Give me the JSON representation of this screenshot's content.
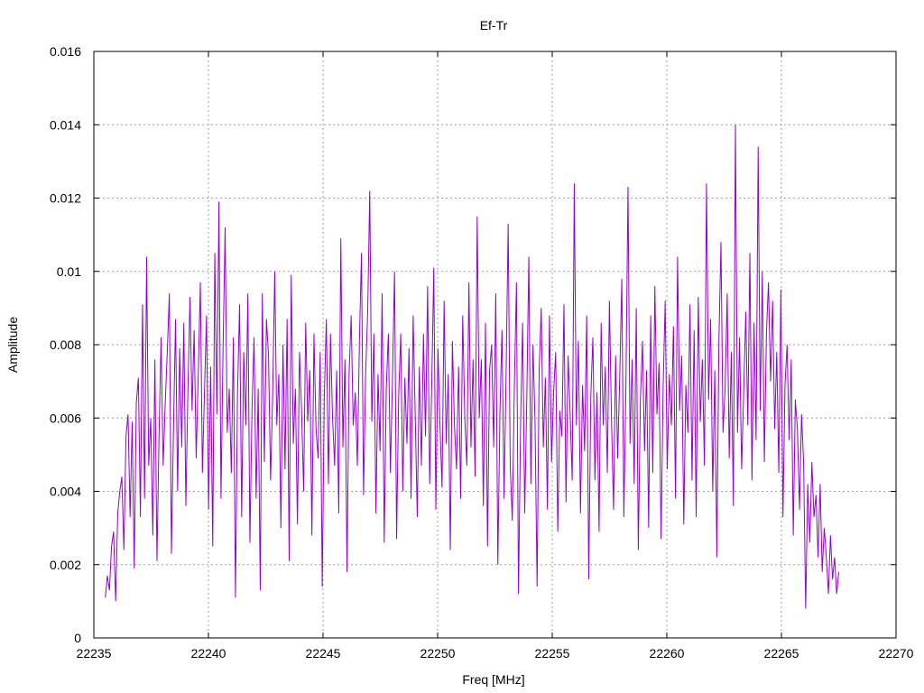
{
  "chart_data": {
    "type": "line",
    "title": "Ef-Tr",
    "xlabel": "Freq [MHz]",
    "ylabel": "Amplitude",
    "xlim": [
      22235,
      22270
    ],
    "ylim": [
      0,
      0.016
    ],
    "xticks": [
      "22235",
      "22240",
      "22245",
      "22250",
      "22255",
      "22260",
      "22265",
      "22270"
    ],
    "yticks": [
      "0",
      "0.002",
      "0.004",
      "0.006",
      "0.008",
      "0.01",
      "0.012",
      "0.014",
      "0.016"
    ],
    "grid": true,
    "series_color": "#9400d3",
    "series": [
      {
        "x_start": 22235.5,
        "x_end": 22267.5,
        "values": [
          0.0011,
          0.0017,
          0.0013,
          0.0025,
          0.0029,
          0.001,
          0.0034,
          0.004,
          0.0044,
          0.0024,
          0.0055,
          0.0061,
          0.0033,
          0.0059,
          0.0019,
          0.0064,
          0.0071,
          0.0033,
          0.0091,
          0.0038,
          0.0104,
          0.0047,
          0.006,
          0.0028,
          0.0076,
          0.0021,
          0.0055,
          0.0082,
          0.0047,
          0.0064,
          0.0078,
          0.0094,
          0.0023,
          0.0057,
          0.0087,
          0.004,
          0.0079,
          0.0052,
          0.0086,
          0.0036,
          0.0068,
          0.0093,
          0.0062,
          0.0084,
          0.0049,
          0.0072,
          0.0097,
          0.0045,
          0.0067,
          0.0088,
          0.0035,
          0.0074,
          0.0025,
          0.0105,
          0.0061,
          0.0119,
          0.0038,
          0.0079,
          0.0112,
          0.0056,
          0.0068,
          0.0045,
          0.0082,
          0.0011,
          0.0067,
          0.0091,
          0.0033,
          0.0078,
          0.0058,
          0.0094,
          0.0026,
          0.0062,
          0.0082,
          0.0038,
          0.0068,
          0.0013,
          0.0094,
          0.0048,
          0.0087,
          0.0077,
          0.0043,
          0.0066,
          0.01,
          0.0058,
          0.0072,
          0.003,
          0.008,
          0.0046,
          0.0087,
          0.0021,
          0.0099,
          0.0053,
          0.0068,
          0.0031,
          0.0078,
          0.0062,
          0.004,
          0.0086,
          0.0059,
          0.0073,
          0.0028,
          0.0083,
          0.0057,
          0.0049,
          0.0078,
          0.0014,
          0.0066,
          0.0087,
          0.0042,
          0.0083,
          0.006,
          0.0047,
          0.0073,
          0.0034,
          0.0109,
          0.0052,
          0.0076,
          0.0018,
          0.0072,
          0.0088,
          0.0058,
          0.0067,
          0.0047,
          0.0081,
          0.0105,
          0.0039,
          0.0072,
          0.0089,
          0.0122,
          0.0059,
          0.0083,
          0.0034,
          0.0072,
          0.0051,
          0.0094,
          0.0026,
          0.0068,
          0.0083,
          0.0045,
          0.0071,
          0.01,
          0.0027,
          0.0066,
          0.0083,
          0.004,
          0.0071,
          0.0053,
          0.0079,
          0.0038,
          0.0088,
          0.0061,
          0.0033,
          0.0074,
          0.0047,
          0.0083,
          0.0055,
          0.0096,
          0.0042,
          0.0069,
          0.0101,
          0.0035,
          0.0079,
          0.0058,
          0.0041,
          0.0092,
          0.0053,
          0.0072,
          0.0024,
          0.0081,
          0.0058,
          0.0046,
          0.0074,
          0.0038,
          0.0088,
          0.006,
          0.0047,
          0.0097,
          0.0052,
          0.0076,
          0.0044,
          0.0115,
          0.006,
          0.0076,
          0.0036,
          0.0086,
          0.0025,
          0.0073,
          0.008,
          0.0052,
          0.0094,
          0.002,
          0.0061,
          0.0084,
          0.0038,
          0.0072,
          0.0113,
          0.0047,
          0.0032,
          0.0069,
          0.0097,
          0.0012,
          0.0058,
          0.0086,
          0.0034,
          0.0065,
          0.0104,
          0.0042,
          0.008,
          0.0059,
          0.0014,
          0.0073,
          0.009,
          0.0052,
          0.0071,
          0.0035,
          0.0088,
          0.0048,
          0.0067,
          0.0078,
          0.0029,
          0.0062,
          0.0055,
          0.0091,
          0.0037,
          0.0077,
          0.0061,
          0.0043,
          0.0124,
          0.0058,
          0.0081,
          0.0034,
          0.0069,
          0.0051,
          0.0088,
          0.0016,
          0.0066,
          0.0082,
          0.0043,
          0.0067,
          0.0029,
          0.0086,
          0.0058,
          0.0074,
          0.0045,
          0.0092,
          0.006,
          0.0035,
          0.0077,
          0.0049,
          0.0071,
          0.0098,
          0.0033,
          0.0069,
          0.0123,
          0.0053,
          0.0076,
          0.0042,
          0.009,
          0.0024,
          0.0065,
          0.0081,
          0.0051,
          0.0073,
          0.003,
          0.0088,
          0.0045,
          0.0096,
          0.0061,
          0.0075,
          0.0027,
          0.0068,
          0.0092,
          0.0046,
          0.0072,
          0.0058,
          0.0085,
          0.0038,
          0.0104,
          0.0062,
          0.0077,
          0.0031,
          0.0069,
          0.0056,
          0.0091,
          0.0043,
          0.0084,
          0.0033,
          0.0093,
          0.0059,
          0.0076,
          0.0047,
          0.0124,
          0.0065,
          0.0087,
          0.004,
          0.0073,
          0.0022,
          0.0081,
          0.0108,
          0.0056,
          0.0068,
          0.0094,
          0.0049,
          0.0078,
          0.0036,
          0.014,
          0.0056,
          0.0082,
          0.0046,
          0.0067,
          0.0089,
          0.0058,
          0.0105,
          0.0043,
          0.0086,
          0.0054,
          0.0134,
          0.0062,
          0.01,
          0.0048,
          0.0083,
          0.0097,
          0.007,
          0.0092,
          0.0057,
          0.0078,
          0.0045,
          0.0095,
          0.0033,
          0.0069,
          0.008,
          0.0054,
          0.0076,
          0.0028,
          0.0065,
          0.0057,
          0.0035,
          0.0061,
          0.0048,
          0.0008,
          0.0042,
          0.0026,
          0.0048,
          0.0033,
          0.0039,
          0.0022,
          0.0042,
          0.0018,
          0.003,
          0.0022,
          0.0012,
          0.0028,
          0.0016,
          0.0022,
          0.0012,
          0.0018
        ]
      }
    ]
  }
}
